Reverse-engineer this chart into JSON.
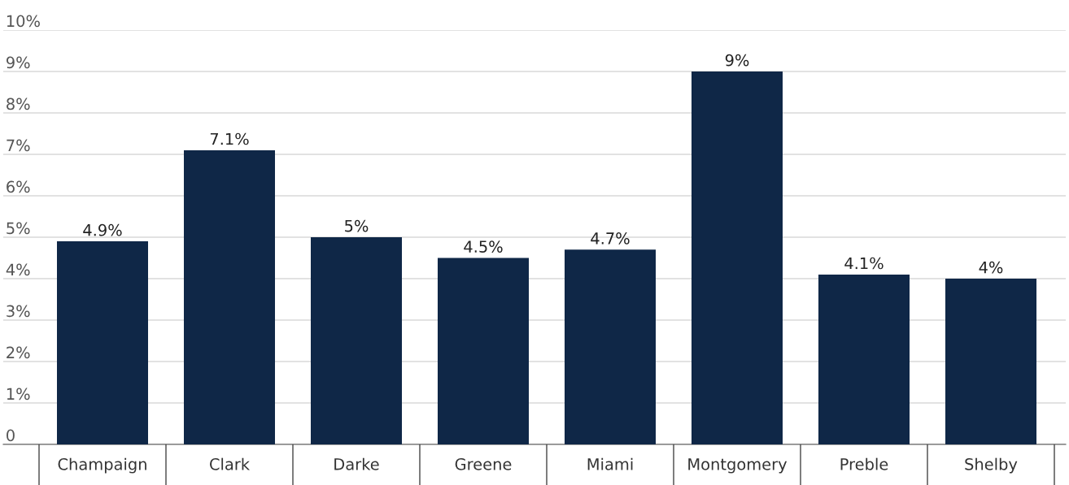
{
  "chart_data": {
    "type": "bar",
    "categories": [
      "Champaign",
      "Clark",
      "Darke",
      "Greene",
      "Miami",
      "Montgomery",
      "Preble",
      "Shelby"
    ],
    "values": [
      4.9,
      7.1,
      5,
      4.5,
      4.7,
      9,
      4.1,
      4
    ],
    "value_labels": [
      "4.9%",
      "7.1%",
      "5%",
      "4.5%",
      "4.7%",
      "9%",
      "4.1%",
      "4%"
    ],
    "color": "#0f2747",
    "ylim": [
      0,
      10
    ],
    "yticks": [
      {
        "value": 0,
        "label": "0"
      },
      {
        "value": 1,
        "label": "1%"
      },
      {
        "value": 2,
        "label": "2%"
      },
      {
        "value": 3,
        "label": "3%"
      },
      {
        "value": 4,
        "label": "4%"
      },
      {
        "value": 5,
        "label": "5%"
      },
      {
        "value": 6,
        "label": "6%"
      },
      {
        "value": 7,
        "label": "7%"
      },
      {
        "value": 8,
        "label": "8%"
      },
      {
        "value": 9,
        "label": "9%"
      },
      {
        "value": 10,
        "label": "10%"
      }
    ],
    "grid": "y",
    "legend": false
  }
}
